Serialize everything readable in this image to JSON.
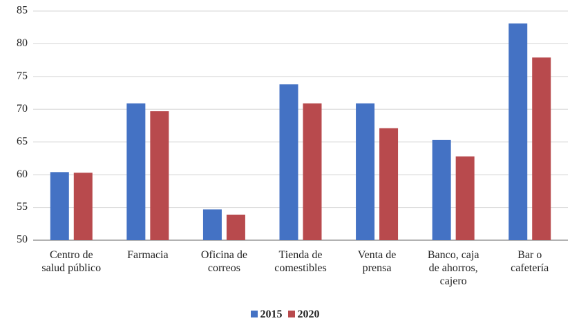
{
  "chart_data": {
    "type": "bar",
    "categories": [
      "Centro de\nsalud público",
      "Farmacia",
      "Oficina de\ncorreos",
      "Tienda de\ncomestibles",
      "Venta de\nprensa",
      "Banco, caja\nde ahorros,\ncajero",
      "Bar o\ncafetería"
    ],
    "series": [
      {
        "name": "2015",
        "color": "#4472c4",
        "values": [
          60.4,
          70.9,
          54.7,
          73.8,
          70.9,
          65.3,
          83.1
        ]
      },
      {
        "name": "2020",
        "color": "#b84a4d",
        "values": [
          60.3,
          69.7,
          53.9,
          70.9,
          67.1,
          62.8,
          77.9
        ]
      }
    ],
    "ylim": [
      50,
      85
    ],
    "yticks": [
      50,
      55,
      60,
      65,
      70,
      75,
      80,
      85
    ],
    "grid": true
  }
}
